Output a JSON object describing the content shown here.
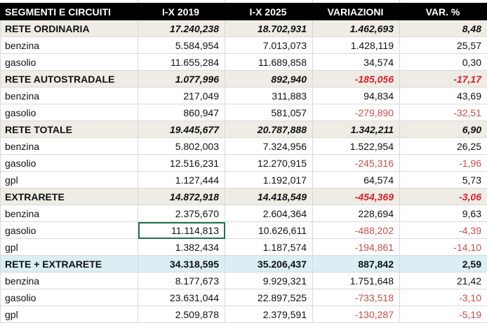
{
  "headers": [
    "SEGMENTI E CIRCUITI",
    "I-X 2019",
    "I-X 2025",
    "VARIAZIONI",
    "VAR. %"
  ],
  "rows": [
    {
      "type": "group",
      "label": "RETE ORDINARIA",
      "v2019": "17.240,238",
      "v2025": "18.702,931",
      "var": "1.462,693",
      "pct": "8,48"
    },
    {
      "type": "item",
      "label": "benzina",
      "v2019": "5.584,954",
      "v2025": "7.013,073",
      "var": "1.428,119",
      "pct": "25,57"
    },
    {
      "type": "item",
      "label": "gasolio",
      "v2019": "11.655,284",
      "v2025": "11.689,858",
      "var": "34,574",
      "pct": "0,30"
    },
    {
      "type": "group",
      "label": "RETE AUTOSTRADALE",
      "v2019": "1.077,996",
      "v2025": "892,940",
      "var": "-185,056",
      "pct": "-17,17"
    },
    {
      "type": "item",
      "label": "benzina",
      "v2019": "217,049",
      "v2025": "311,883",
      "var": "94,834",
      "pct": "43,69"
    },
    {
      "type": "item",
      "label": "gasolio",
      "v2019": "860,947",
      "v2025": "581,057",
      "var": "-279,890",
      "pct": "-32,51"
    },
    {
      "type": "group",
      "label": "RETE TOTALE",
      "v2019": "19.445,677",
      "v2025": "20.787,888",
      "var": "1.342,211",
      "pct": "6,90"
    },
    {
      "type": "item",
      "label": "benzina",
      "v2019": "5.802,003",
      "v2025": "7.324,956",
      "var": "1.522,954",
      "pct": "26,25"
    },
    {
      "type": "item",
      "label": "gasolio",
      "v2019": "12.516,231",
      "v2025": "12.270,915",
      "var": "-245,316",
      "pct": "-1,96"
    },
    {
      "type": "item",
      "label": "gpl",
      "v2019": "1.127,444",
      "v2025": "1.192,017",
      "var": "64,574",
      "pct": "5,73"
    },
    {
      "type": "group",
      "label": "EXTRARETE",
      "v2019": "14.872,918",
      "v2025": "14.418,549",
      "var": "-454,369",
      "pct": "-3,06"
    },
    {
      "type": "item",
      "label": "benzina",
      "v2019": "2.375,670",
      "v2025": "2.604,364",
      "var": "228,694",
      "pct": "9,63"
    },
    {
      "type": "item",
      "label": "gasolio",
      "v2019": "11.114,813",
      "v2025": "10.626,611",
      "var": "-488,202",
      "pct": "-4,39",
      "selected": true
    },
    {
      "type": "item",
      "label": "gpl",
      "v2019": "1.382,434",
      "v2025": "1.187,574",
      "var": "-194,861",
      "pct": "-14,10"
    },
    {
      "type": "total",
      "label": "RETE + EXTRARETE",
      "v2019": "34.318,595",
      "v2025": "35.206,437",
      "var": "887,842",
      "pct": "2,59"
    },
    {
      "type": "item",
      "label": "benzina",
      "v2019": "8.177,673",
      "v2025": "9.929,321",
      "var": "1.751,648",
      "pct": "21,42"
    },
    {
      "type": "item",
      "label": "gasolio",
      "v2019": "23.631,044",
      "v2025": "22.897,525",
      "var": "-733,518",
      "pct": "-3,10"
    },
    {
      "type": "item",
      "label": "gpl",
      "v2019": "2.509,878",
      "v2025": "2.379,591",
      "var": "-130,287",
      "pct": "-5,19"
    }
  ],
  "colors": {
    "header_bg": "#000000",
    "group_bg": "#eeece4",
    "total_bg": "#daeef3",
    "negative": "#c0504d",
    "selection": "#217346"
  }
}
